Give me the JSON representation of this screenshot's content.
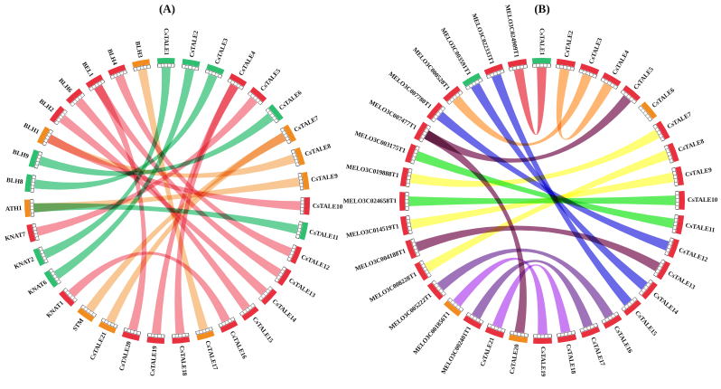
{
  "panels": [
    {
      "id": "A",
      "label": "(A)",
      "segments": [
        {
          "name": "CsTALE1",
          "color": "#2fbf71"
        },
        {
          "name": "CsTALE2",
          "color": "#2fbf71"
        },
        {
          "name": "CsTALE3",
          "color": "#2fbf71"
        },
        {
          "name": "CsTALE4",
          "color": "#e8303f"
        },
        {
          "name": "CsTALE5",
          "color": "#e8303f"
        },
        {
          "name": "CsTALE6",
          "color": "#2fbf71"
        },
        {
          "name": "CsTALE7",
          "color": "#f28c1e"
        },
        {
          "name": "CsTALE8",
          "color": "#f28c1e"
        },
        {
          "name": "CsTALE9",
          "color": "#f28c1e"
        },
        {
          "name": "CsTALE10",
          "color": "#e8303f"
        },
        {
          "name": "CsTALE11",
          "color": "#2fbf71"
        },
        {
          "name": "CsTALE12",
          "color": "#e8303f"
        },
        {
          "name": "CsTALE13",
          "color": "#e8303f"
        },
        {
          "name": "CsTALE14",
          "color": "#e8303f"
        },
        {
          "name": "CsTALE15",
          "color": "#e8303f"
        },
        {
          "name": "CsTALE16",
          "color": "#e8303f"
        },
        {
          "name": "CsTALE17",
          "color": "#f28c1e"
        },
        {
          "name": "CsTALE18",
          "color": "#e8303f"
        },
        {
          "name": "CsTALE19",
          "color": "#e8303f"
        },
        {
          "name": "CsTALE20",
          "color": "#e8303f"
        },
        {
          "name": "CsTALE21",
          "color": "#f28c1e"
        },
        {
          "name": "STM",
          "color": "#f28c1e"
        },
        {
          "name": "KNAT1",
          "color": "#e8303f"
        },
        {
          "name": "KNAT6",
          "color": "#2fbf71"
        },
        {
          "name": "KNAT2",
          "color": "#2fbf71"
        },
        {
          "name": "KNAT7",
          "color": "#e8303f"
        },
        {
          "name": "ATH1",
          "color": "#f28c1e"
        },
        {
          "name": "BLH8",
          "color": "#2fbf71"
        },
        {
          "name": "BLH9",
          "color": "#2fbf71"
        },
        {
          "name": "BLH1",
          "color": "#f28c1e"
        },
        {
          "name": "BLH2",
          "color": "#e8303f"
        },
        {
          "name": "BLH6",
          "color": "#e8303f"
        },
        {
          "name": "BEL1",
          "color": "#e8303f"
        },
        {
          "name": "BLH4",
          "color": "#e8303f"
        },
        {
          "name": "BLH3",
          "color": "#f28c1e"
        }
      ],
      "links": [
        {
          "from": "CsTALE1",
          "to": "KNAT2",
          "color": "#2fbf71"
        },
        {
          "from": "CsTALE2",
          "to": "KNAT6",
          "color": "#2fbf71"
        },
        {
          "from": "CsTALE3",
          "to": "BLH8",
          "color": "#2fbf71"
        },
        {
          "from": "CsTALE6",
          "to": "BLH9",
          "color": "#2fbf71"
        },
        {
          "from": "CsTALE11",
          "to": "ATH1",
          "color": "#2fbf71"
        },
        {
          "from": "CsTALE4",
          "to": "CsTALE19",
          "color": "#f26d7d"
        },
        {
          "from": "CsTALE5",
          "to": "KNAT7",
          "color": "#f26d7d"
        },
        {
          "from": "CsTALE10",
          "to": "BLH1",
          "color": "#f26d7d"
        },
        {
          "from": "CsTALE12",
          "to": "BLH4",
          "color": "#f26d7d"
        },
        {
          "from": "CsTALE13",
          "to": "BEL1",
          "color": "#f26d7d"
        },
        {
          "from": "CsTALE14",
          "to": "BLH2",
          "color": "#f26d7d"
        },
        {
          "from": "CsTALE15",
          "to": "BLH6",
          "color": "#f26d7d"
        },
        {
          "from": "CsTALE16",
          "to": "KNAT1",
          "color": "#f26d7d"
        },
        {
          "from": "CsTALE18",
          "to": "CsTALE4",
          "color": "#f26d7d"
        },
        {
          "from": "CsTALE20",
          "to": "BEL1",
          "color": "#f26d7d"
        },
        {
          "from": "CsTALE7",
          "to": "CsTALE21",
          "color": "#f7b26a"
        },
        {
          "from": "CsTALE8",
          "to": "BLH1",
          "color": "#f7b26a"
        },
        {
          "from": "CsTALE9",
          "to": "ATH1",
          "color": "#f7b26a"
        },
        {
          "from": "CsTALE17",
          "to": "BLH3",
          "color": "#f7b26a"
        },
        {
          "from": "STM",
          "to": "CsTALE7",
          "color": "#f7b26a"
        }
      ]
    },
    {
      "id": "B",
      "label": "(B)",
      "segments": [
        {
          "name": "CsTALE1",
          "color": "#2fbf71"
        },
        {
          "name": "CsTALE2",
          "color": "#e8303f"
        },
        {
          "name": "CsTALE3",
          "color": "#e8303f"
        },
        {
          "name": "CsTALE4",
          "color": "#e8303f"
        },
        {
          "name": "CsTALE5",
          "color": "#e8303f"
        },
        {
          "name": "CsTALE6",
          "color": "#f28c1e"
        },
        {
          "name": "CsTALE7",
          "color": "#e8303f"
        },
        {
          "name": "CsTALE8",
          "color": "#e8303f"
        },
        {
          "name": "CsTALE9",
          "color": "#e8303f"
        },
        {
          "name": "CsTALE10",
          "color": "#e8303f"
        },
        {
          "name": "CsTALE11",
          "color": "#e8303f"
        },
        {
          "name": "CsTALE12",
          "color": "#e8303f"
        },
        {
          "name": "CsTALE13",
          "color": "#e8303f"
        },
        {
          "name": "CsTALE14",
          "color": "#e8303f"
        },
        {
          "name": "CsTALE15",
          "color": "#e8303f"
        },
        {
          "name": "CsTALE16",
          "color": "#e8303f"
        },
        {
          "name": "CsTALE17",
          "color": "#e8303f"
        },
        {
          "name": "CsTALE18",
          "color": "#e8303f"
        },
        {
          "name": "CsTALE19",
          "color": "#e8303f"
        },
        {
          "name": "CsTALE20",
          "color": "#f28c1e"
        },
        {
          "name": "CsTALE21",
          "color": "#e8303f"
        },
        {
          "name": "MELO3C002401T1",
          "color": "#e8303f"
        },
        {
          "name": "MELO3C001856T1",
          "color": "#f28c1e"
        },
        {
          "name": "MELO3C005222T1",
          "color": "#e8303f"
        },
        {
          "name": "MELO3C008228T1",
          "color": "#e8303f"
        },
        {
          "name": "MELO3C004188T1",
          "color": "#e8303f"
        },
        {
          "name": "MELO3C014519T1",
          "color": "#e8303f"
        },
        {
          "name": "MELO3C024658T1",
          "color": "#e8303f"
        },
        {
          "name": "MELO3C019888T1",
          "color": "#e8303f"
        },
        {
          "name": "MELO3C003175T1",
          "color": "#e8303f"
        },
        {
          "name": "MELO3C007477T1",
          "color": "#e8303f"
        },
        {
          "name": "MELO3C007780T1",
          "color": "#e8303f"
        },
        {
          "name": "MELO3C000528T1",
          "color": "#e8303f"
        },
        {
          "name": "MELO3C003591T1",
          "color": "#2fbf71"
        },
        {
          "name": "MELO3C022333T1",
          "color": "#e8303f"
        },
        {
          "name": "MELO3C024909T1",
          "color": "#e8303f"
        }
      ],
      "links": [
        {
          "from": "CsTALE2",
          "to": "CsTALE4",
          "color": "#ff9a3d"
        },
        {
          "from": "CsTALE3",
          "to": "MELO3C000528T1",
          "color": "#ff9a3d"
        },
        {
          "from": "CsTALE1",
          "to": "MELO3C024909T1",
          "color": "#e8303f"
        },
        {
          "from": "CsTALE5",
          "to": "MELO3C007477T1",
          "color": "#7a1a55"
        },
        {
          "from": "CsTALE7",
          "to": "MELO3C019888T1",
          "color": "#ffff40"
        },
        {
          "from": "CsTALE8",
          "to": "MELO3C008228T1",
          "color": "#ffff40"
        },
        {
          "from": "CsTALE9",
          "to": "MELO3C014519T1",
          "color": "#ffff40"
        },
        {
          "from": "CsTALE10",
          "to": "MELO3C024658T1",
          "color": "#22e622"
        },
        {
          "from": "CsTALE11",
          "to": "MELO3C003175T1",
          "color": "#22e622"
        },
        {
          "from": "CsTALE12",
          "to": "MELO3C007780T1",
          "color": "#3030e0"
        },
        {
          "from": "CsTALE13",
          "to": "MELO3C004188T1",
          "color": "#7a1a55"
        },
        {
          "from": "CsTALE14",
          "to": "MELO3C003591T1",
          "color": "#3030e0"
        },
        {
          "from": "CsTALE15",
          "to": "MELO3C022333T1",
          "color": "#3030e0"
        },
        {
          "from": "CsTALE16",
          "to": "MELO3C005222T1",
          "color": "#7a3d9e"
        },
        {
          "from": "CsTALE17",
          "to": "MELO3C002401T1",
          "color": "#7a3d9e"
        },
        {
          "from": "CsTALE18",
          "to": "CsTALE21",
          "color": "#b64cf0"
        },
        {
          "from": "CsTALE19",
          "to": "MELO3C001856T1",
          "color": "#b64cf0"
        },
        {
          "from": "CsTALE20",
          "to": "MELO3C007477T1",
          "color": "#7a1a55"
        }
      ]
    }
  ]
}
